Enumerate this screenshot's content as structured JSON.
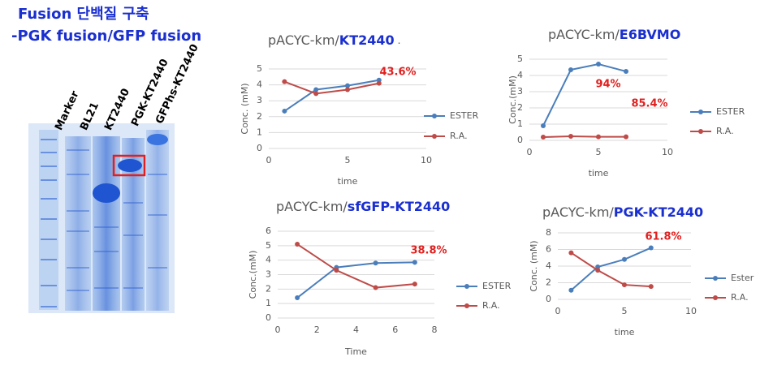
{
  "header": {
    "title": "Fusion 단백질 구축",
    "subtitle": "-PGK fusion/GFP fusion"
  },
  "gel": {
    "lanes": [
      "Marker",
      "BL21",
      "KT2440",
      "PGK-KT2440",
      "GFPhs-KT2440"
    ]
  },
  "chart_data": [
    {
      "type": "line",
      "title": {
        "prefix": "pACYC-km/",
        "name": "KT2440",
        "suffix": "."
      },
      "x_label": "time",
      "y_label": "Conc. (mM)",
      "x": [
        1,
        3,
        5,
        7
      ],
      "xlim": [
        0,
        10
      ],
      "xticks": [
        0,
        5,
        10
      ],
      "ylim": [
        0,
        5
      ],
      "yticks": [
        0,
        1,
        2,
        3,
        4,
        5
      ],
      "grid": true,
      "series": [
        {
          "name": "ESTER",
          "color": "#4a7ebb",
          "values": [
            2.35,
            3.7,
            3.95,
            4.3
          ]
        },
        {
          "name": "R.A.",
          "color": "#be4b48",
          "values": [
            4.2,
            3.45,
            3.7,
            4.1
          ]
        }
      ],
      "annotations": [
        "43.6%"
      ]
    },
    {
      "type": "line",
      "title": {
        "prefix": "pACYC-km/",
        "name": "E6BVMO"
      },
      "x_label": "time",
      "y_label": "Conc.(mM)",
      "x": [
        1,
        3,
        5,
        7
      ],
      "xlim": [
        0,
        10
      ],
      "xticks": [
        0,
        5,
        10
      ],
      "ylim": [
        0,
        5
      ],
      "yticks": [
        0,
        1,
        2,
        3,
        4,
        5
      ],
      "grid": true,
      "series": [
        {
          "name": "ESTER",
          "color": "#4a7ebb",
          "values": [
            0.9,
            4.35,
            4.7,
            4.25
          ]
        },
        {
          "name": "R.A.",
          "color": "#be4b48",
          "values": [
            0.2,
            0.25,
            0.22,
            0.22
          ]
        }
      ],
      "annotations": [
        "94%",
        "85.4%"
      ]
    },
    {
      "type": "line",
      "title": {
        "prefix": "pACYC-km/",
        "name": "sfGFP-KT2440"
      },
      "x_label": "Time",
      "y_label": "Conc.(mM)",
      "x": [
        1,
        3,
        5,
        7
      ],
      "xlim": [
        0,
        8
      ],
      "xticks": [
        0,
        2,
        4,
        6,
        8
      ],
      "ylim": [
        0,
        6
      ],
      "yticks": [
        0,
        1,
        2,
        3,
        4,
        5,
        6
      ],
      "grid": true,
      "series": [
        {
          "name": "ESTER",
          "color": "#4a7ebb",
          "values": [
            1.4,
            3.5,
            3.8,
            3.85
          ]
        },
        {
          "name": "R.A.",
          "color": "#be4b48",
          "values": [
            5.1,
            3.3,
            2.1,
            2.35
          ]
        }
      ],
      "annotations": [
        "38.8%"
      ]
    },
    {
      "type": "line",
      "title": {
        "prefix": "pACYC-km/",
        "name": "PGK-KT2440"
      },
      "x_label": "time",
      "y_label": "Conc. (mM)",
      "x": [
        1,
        3,
        5,
        7
      ],
      "xlim": [
        0,
        10
      ],
      "xticks": [
        0,
        5,
        10
      ],
      "ylim": [
        0,
        8
      ],
      "yticks": [
        0,
        2,
        4,
        6,
        8
      ],
      "grid": true,
      "series": [
        {
          "name": "Ester",
          "color": "#4a7ebb",
          "values": [
            1.1,
            3.9,
            4.8,
            6.2
          ]
        },
        {
          "name": "R.A.",
          "color": "#be4b48",
          "values": [
            5.6,
            3.5,
            1.75,
            1.55
          ]
        }
      ],
      "annotations": [
        "61.8%"
      ]
    }
  ]
}
